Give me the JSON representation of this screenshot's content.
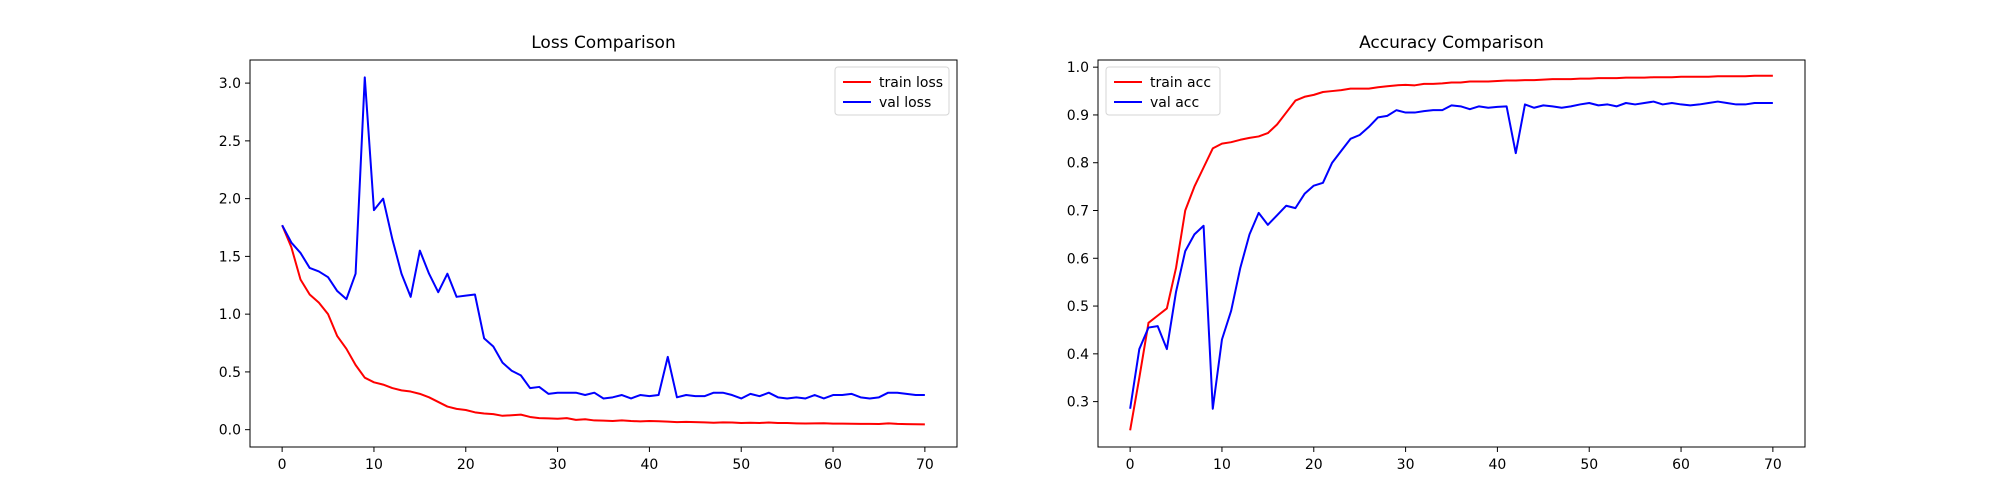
{
  "chart_data": [
    {
      "type": "line",
      "title": "Loss Comparison",
      "xlabel": "",
      "ylabel": "",
      "xlim": [
        -3.5,
        73.5
      ],
      "ylim": [
        -0.15,
        3.2
      ],
      "xticks": [
        0,
        10,
        20,
        30,
        40,
        50,
        60,
        70
      ],
      "yticks": [
        0.0,
        0.5,
        1.0,
        1.5,
        2.0,
        2.5,
        3.0
      ],
      "ytick_labels": [
        "0.0",
        "0.5",
        "1.0",
        "1.5",
        "2.0",
        "2.5",
        "3.0"
      ],
      "grid": false,
      "legend_position": "top-right",
      "series": [
        {
          "name": "train loss",
          "color": "#ff0000",
          "x": [
            0,
            1,
            2,
            3,
            4,
            5,
            6,
            7,
            8,
            9,
            10,
            11,
            12,
            13,
            14,
            15,
            16,
            17,
            18,
            19,
            20,
            21,
            22,
            23,
            24,
            25,
            26,
            27,
            28,
            29,
            30,
            31,
            32,
            33,
            34,
            35,
            36,
            37,
            38,
            39,
            40,
            41,
            42,
            43,
            44,
            45,
            46,
            47,
            48,
            49,
            50,
            51,
            52,
            53,
            54,
            55,
            56,
            57,
            58,
            59,
            60,
            61,
            62,
            63,
            64,
            65,
            66,
            67,
            68,
            69,
            70
          ],
          "values": [
            1.77,
            1.58,
            1.3,
            1.17,
            1.1,
            1.0,
            0.81,
            0.7,
            0.56,
            0.45,
            0.41,
            0.39,
            0.36,
            0.34,
            0.33,
            0.31,
            0.28,
            0.24,
            0.2,
            0.18,
            0.17,
            0.15,
            0.14,
            0.135,
            0.12,
            0.125,
            0.13,
            0.11,
            0.1,
            0.098,
            0.095,
            0.1,
            0.085,
            0.09,
            0.08,
            0.078,
            0.075,
            0.08,
            0.075,
            0.072,
            0.075,
            0.073,
            0.07,
            0.065,
            0.068,
            0.065,
            0.063,
            0.06,
            0.063,
            0.062,
            0.058,
            0.06,
            0.058,
            0.062,
            0.058,
            0.058,
            0.055,
            0.053,
            0.055,
            0.056,
            0.052,
            0.052,
            0.051,
            0.05,
            0.05,
            0.049,
            0.055,
            0.05,
            0.048,
            0.047,
            0.046
          ]
        },
        {
          "name": "val loss",
          "color": "#0000ff",
          "x": [
            0,
            1,
            2,
            3,
            4,
            5,
            6,
            7,
            8,
            9,
            10,
            11,
            12,
            13,
            14,
            15,
            16,
            17,
            18,
            19,
            20,
            21,
            22,
            23,
            24,
            25,
            26,
            27,
            28,
            29,
            30,
            31,
            32,
            33,
            34,
            35,
            36,
            37,
            38,
            39,
            40,
            41,
            42,
            43,
            44,
            45,
            46,
            47,
            48,
            49,
            50,
            51,
            52,
            53,
            54,
            55,
            56,
            57,
            58,
            59,
            60,
            61,
            62,
            63,
            64,
            65,
            66,
            67,
            68,
            69,
            70
          ],
          "values": [
            1.77,
            1.62,
            1.53,
            1.4,
            1.37,
            1.32,
            1.2,
            1.13,
            1.35,
            3.05,
            1.9,
            2.0,
            1.65,
            1.35,
            1.15,
            1.55,
            1.35,
            1.19,
            1.35,
            1.15,
            1.16,
            1.17,
            0.79,
            0.72,
            0.58,
            0.51,
            0.47,
            0.36,
            0.37,
            0.31,
            0.32,
            0.32,
            0.32,
            0.3,
            0.32,
            0.27,
            0.28,
            0.3,
            0.27,
            0.3,
            0.29,
            0.3,
            0.63,
            0.28,
            0.3,
            0.29,
            0.29,
            0.32,
            0.32,
            0.3,
            0.27,
            0.31,
            0.29,
            0.32,
            0.28,
            0.27,
            0.28,
            0.27,
            0.3,
            0.27,
            0.3,
            0.3,
            0.31,
            0.28,
            0.27,
            0.28,
            0.32,
            0.32,
            0.31,
            0.3,
            0.3
          ]
        }
      ]
    },
    {
      "type": "line",
      "title": "Accuracy Comparison",
      "xlabel": "",
      "ylabel": "",
      "xlim": [
        -3.5,
        73.5
      ],
      "ylim": [
        0.205,
        1.015
      ],
      "xticks": [
        0,
        10,
        20,
        30,
        40,
        50,
        60,
        70
      ],
      "yticks": [
        0.3,
        0.4,
        0.5,
        0.6,
        0.7,
        0.8,
        0.9,
        1.0
      ],
      "ytick_labels": [
        "0.3",
        "0.4",
        "0.5",
        "0.6",
        "0.7",
        "0.8",
        "0.9",
        "1.0"
      ],
      "grid": false,
      "legend_position": "top-left",
      "series": [
        {
          "name": "train acc",
          "color": "#ff0000",
          "x": [
            0,
            1,
            2,
            3,
            4,
            5,
            6,
            7,
            8,
            9,
            10,
            11,
            12,
            13,
            14,
            15,
            16,
            17,
            18,
            19,
            20,
            21,
            22,
            23,
            24,
            25,
            26,
            27,
            28,
            29,
            30,
            31,
            32,
            33,
            34,
            35,
            36,
            37,
            38,
            39,
            40,
            41,
            42,
            43,
            44,
            45,
            46,
            47,
            48,
            49,
            50,
            51,
            52,
            53,
            54,
            55,
            56,
            57,
            58,
            59,
            60,
            61,
            62,
            63,
            64,
            65,
            66,
            67,
            68,
            69,
            70
          ],
          "values": [
            0.24,
            0.35,
            0.465,
            0.48,
            0.495,
            0.58,
            0.7,
            0.75,
            0.79,
            0.83,
            0.84,
            0.843,
            0.848,
            0.852,
            0.855,
            0.862,
            0.88,
            0.905,
            0.93,
            0.938,
            0.942,
            0.948,
            0.95,
            0.952,
            0.955,
            0.955,
            0.955,
            0.958,
            0.96,
            0.962,
            0.963,
            0.962,
            0.965,
            0.965,
            0.966,
            0.968,
            0.968,
            0.97,
            0.97,
            0.97,
            0.971,
            0.972,
            0.972,
            0.973,
            0.973,
            0.974,
            0.975,
            0.975,
            0.975,
            0.976,
            0.976,
            0.977,
            0.977,
            0.977,
            0.978,
            0.978,
            0.978,
            0.979,
            0.979,
            0.979,
            0.98,
            0.98,
            0.98,
            0.98,
            0.981,
            0.981,
            0.981,
            0.981,
            0.982,
            0.982,
            0.982
          ]
        },
        {
          "name": "val acc",
          "color": "#0000ff",
          "x": [
            0,
            1,
            2,
            3,
            4,
            5,
            6,
            7,
            8,
            9,
            10,
            11,
            12,
            13,
            14,
            15,
            16,
            17,
            18,
            19,
            20,
            21,
            22,
            23,
            24,
            25,
            26,
            27,
            28,
            29,
            30,
            31,
            32,
            33,
            34,
            35,
            36,
            37,
            38,
            39,
            40,
            41,
            42,
            43,
            44,
            45,
            46,
            47,
            48,
            49,
            50,
            51,
            52,
            53,
            54,
            55,
            56,
            57,
            58,
            59,
            60,
            61,
            62,
            63,
            64,
            65,
            66,
            67,
            68,
            69,
            70
          ],
          "values": [
            0.285,
            0.41,
            0.455,
            0.458,
            0.41,
            0.53,
            0.615,
            0.65,
            0.668,
            0.285,
            0.43,
            0.49,
            0.58,
            0.65,
            0.695,
            0.67,
            0.69,
            0.71,
            0.705,
            0.735,
            0.752,
            0.758,
            0.8,
            0.825,
            0.85,
            0.858,
            0.875,
            0.895,
            0.898,
            0.91,
            0.905,
            0.905,
            0.908,
            0.91,
            0.91,
            0.92,
            0.918,
            0.912,
            0.918,
            0.915,
            0.917,
            0.918,
            0.82,
            0.922,
            0.915,
            0.92,
            0.918,
            0.915,
            0.918,
            0.922,
            0.925,
            0.92,
            0.922,
            0.918,
            0.925,
            0.922,
            0.925,
            0.928,
            0.922,
            0.925,
            0.922,
            0.92,
            0.922,
            0.925,
            0.928,
            0.925,
            0.922,
            0.922,
            0.925,
            0.925,
            0.925
          ]
        }
      ]
    }
  ]
}
